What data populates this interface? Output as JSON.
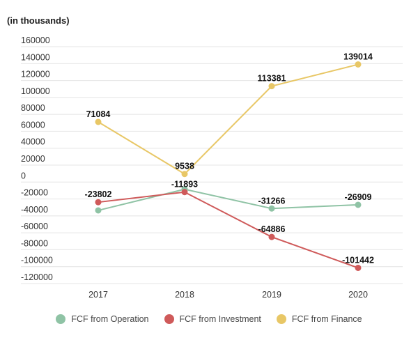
{
  "chart_data": {
    "type": "line",
    "unit_label": "(in thousands)",
    "categories": [
      "2017",
      "2018",
      "2019",
      "2020"
    ],
    "ylim": [
      -120000,
      160000
    ],
    "yticks": [
      160000,
      140000,
      120000,
      100000,
      80000,
      60000,
      40000,
      20000,
      0,
      -20000,
      -40000,
      -60000,
      -80000,
      -100000,
      -120000
    ],
    "grid": true,
    "legend_position": "bottom",
    "series": [
      {
        "name": "FCF from Operation",
        "color": "#8fc3a5",
        "values": [
          -33500,
          -8500,
          -31266,
          -26909
        ],
        "labels": [
          "",
          "",
          "",
          ""
        ]
      },
      {
        "name": "FCF from Investment",
        "color": "#cf5a5a",
        "values": [
          -23802,
          -11893,
          -64886,
          -101442
        ],
        "labels": [
          "-23802",
          "-11893",
          "-64886",
          "-101442"
        ]
      },
      {
        "name": "FCF from Finance",
        "color": "#e8c766",
        "values": [
          71084,
          9538,
          113381,
          139014
        ],
        "labels": [
          "71084",
          "9538",
          "113381",
          "139014"
        ]
      }
    ],
    "extra_labels": [
      {
        "series": 0,
        "index": 2,
        "text": "-31266"
      },
      {
        "series": 0,
        "index": 3,
        "text": "-26909"
      }
    ]
  }
}
